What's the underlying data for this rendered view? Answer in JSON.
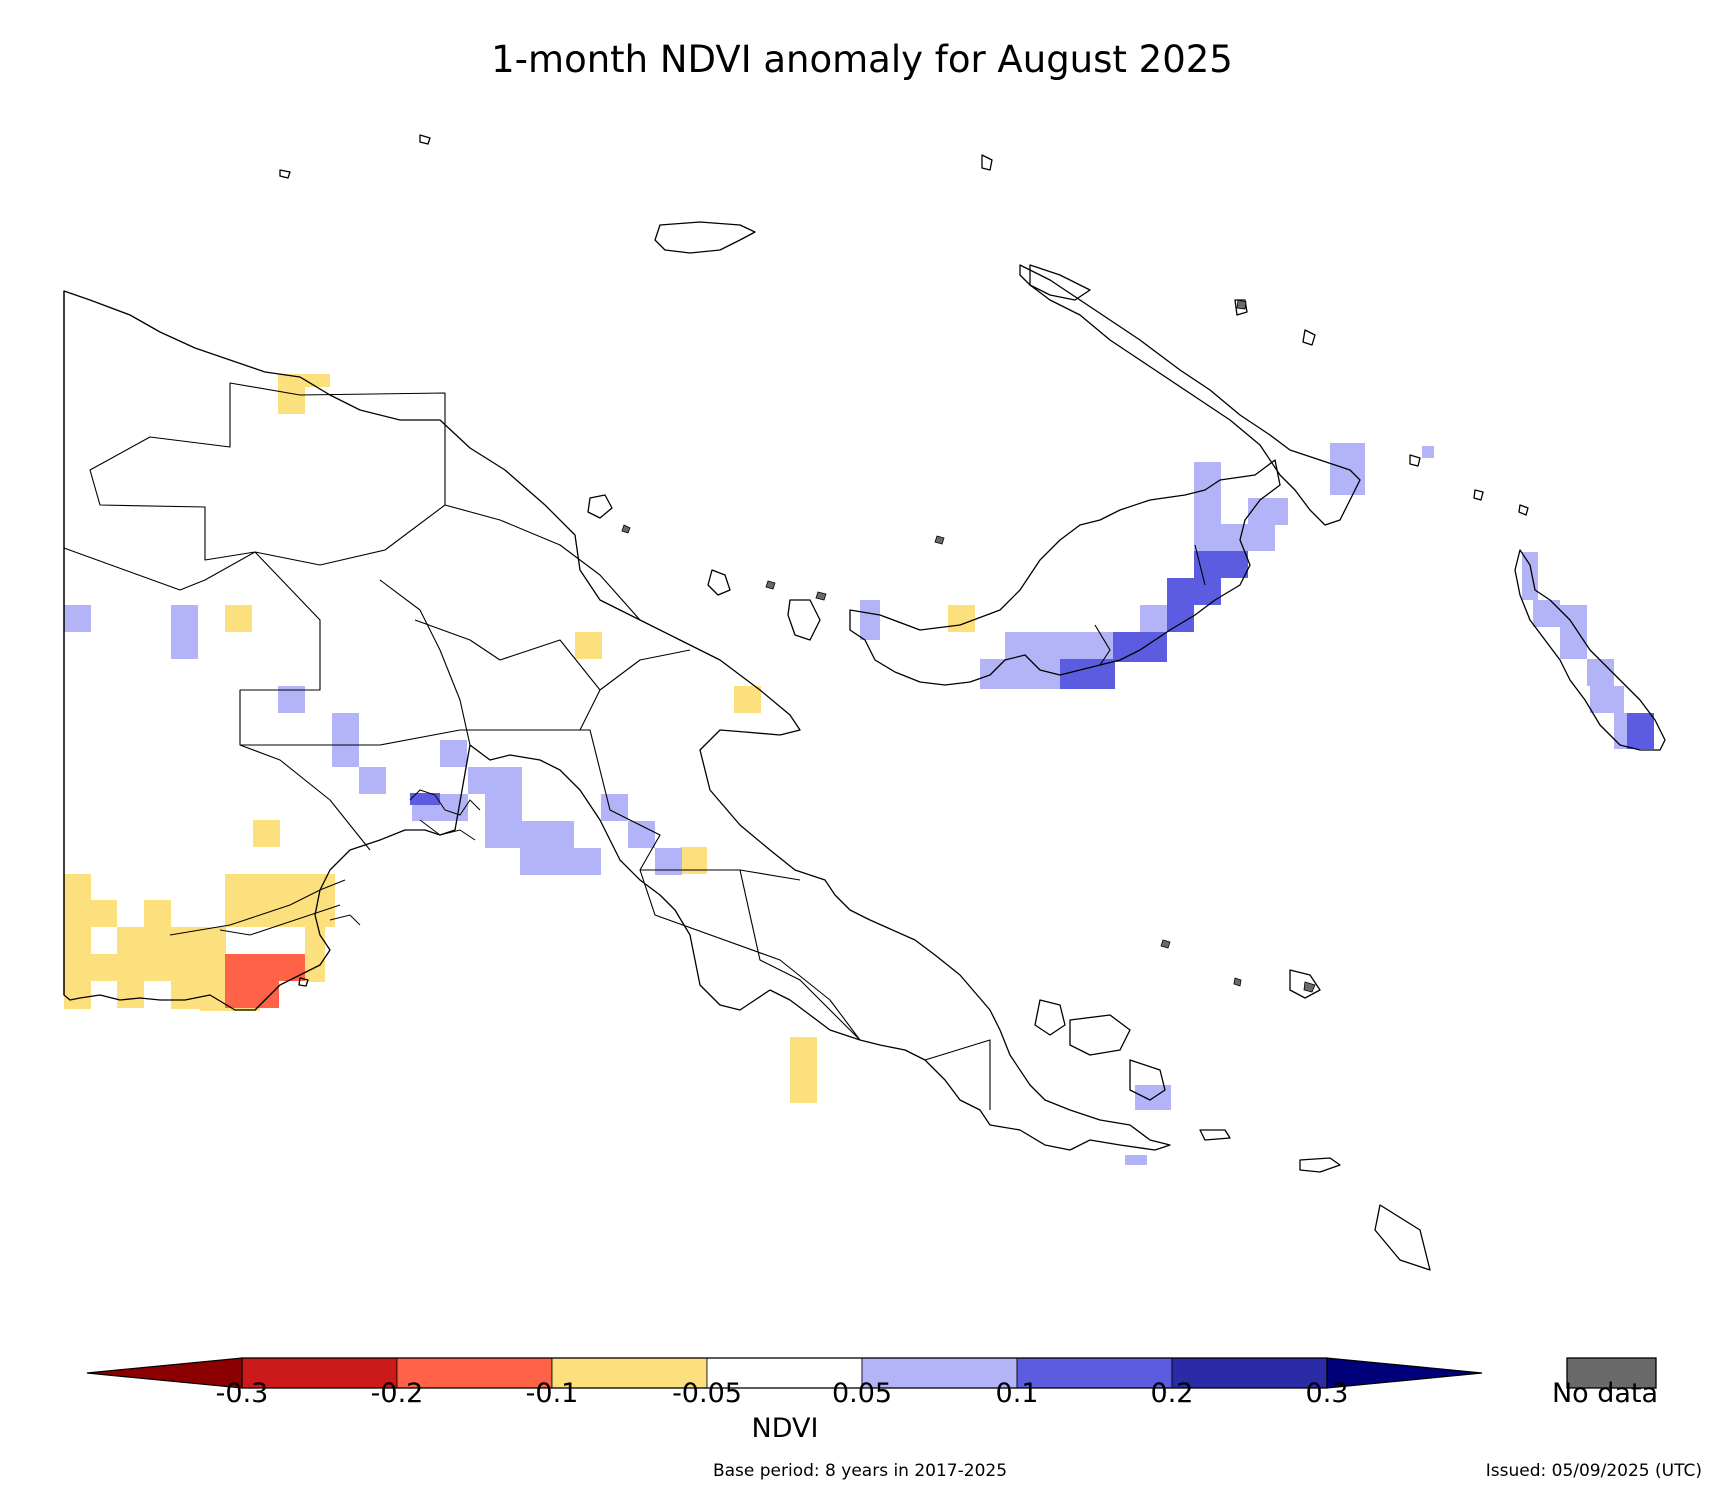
{
  "title": "1-month NDVI anomaly for August 2025",
  "colorbar": {
    "title": "NDVI",
    "ticks": [
      "-0.3",
      "-0.2",
      "-0.1",
      "-0.05",
      "0.05",
      "0.1",
      "0.2",
      "0.3"
    ],
    "colors": {
      "under": "#8b0000",
      "bins": [
        "#cc1a1a",
        "#ff6347",
        "#fde07e",
        "#ffffff",
        "#b3b3f7",
        "#5c5ce0",
        "#2b2ba8"
      ],
      "over": "#00007a"
    },
    "nodata_label": "No data",
    "nodata_color": "#6a6a6a"
  },
  "footer": {
    "base_period": "Base period: 8 years in 2017-2025",
    "issued": "Issued: 05/09/2025 (UTC)"
  },
  "anomaly_classes": {
    "strong_negative": "-0.2 to -0.1",
    "mild_negative": "-0.1 to -0.05",
    "mild_positive": "0.05 to 0.1",
    "moderate_positive": "0.1 to 0.2"
  }
}
